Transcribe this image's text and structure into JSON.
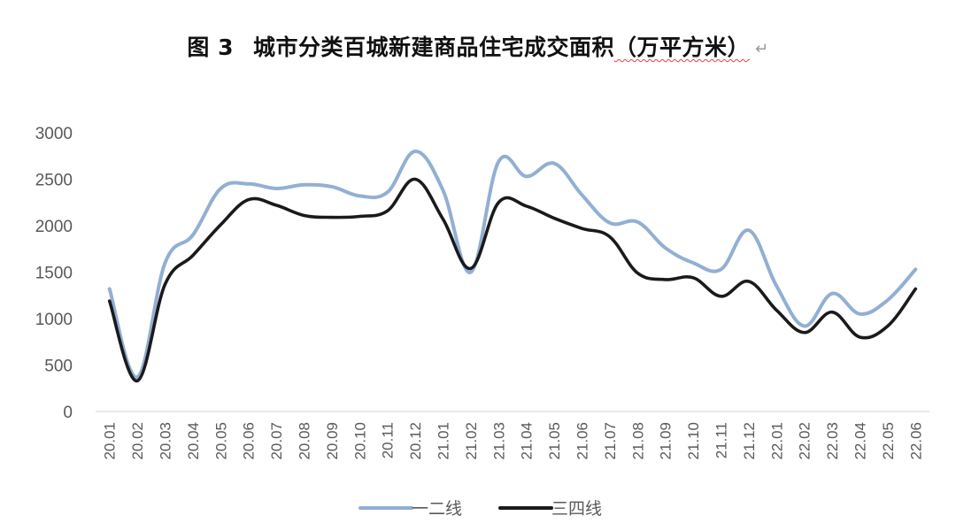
{
  "title": {
    "figure_label": "图 3",
    "main": "城市分类百城新建商品住宅成交面积",
    "unit": "（万平方米）",
    "return_mark": "↵"
  },
  "chart_data": {
    "type": "line",
    "title": "图 3　城市分类百城新建商品住宅成交面积（万平方米）",
    "xlabel": "",
    "ylabel": "",
    "ylim": [
      0,
      3000
    ],
    "yticks": [
      0,
      500,
      1000,
      1500,
      2000,
      2500,
      3000
    ],
    "grid": false,
    "legend_position": "bottom",
    "categories": [
      "20.01",
      "20.02",
      "20.03",
      "20.04",
      "20.05",
      "20.06",
      "20.07",
      "20.08",
      "20.09",
      "20.10",
      "20.11",
      "20.12",
      "21.01",
      "21.02",
      "21.03",
      "21.04",
      "21.05",
      "21.06",
      "21.07",
      "21.08",
      "21.09",
      "21.10",
      "21.11",
      "21.12",
      "22.01",
      "22.02",
      "22.03",
      "22.04",
      "22.05",
      "22.06"
    ],
    "series": [
      {
        "name": "一二线",
        "color": "#92AFD3",
        "values": [
          1320,
          370,
          1600,
          1900,
          2400,
          2450,
          2400,
          2440,
          2420,
          2320,
          2360,
          2800,
          2380,
          1500,
          2690,
          2530,
          2670,
          2330,
          2030,
          2040,
          1760,
          1600,
          1530,
          1950,
          1350,
          920,
          1270,
          1050,
          1200,
          1530
        ]
      },
      {
        "name": "三四线",
        "color": "#1A1A1A",
        "values": [
          1190,
          330,
          1370,
          1680,
          2010,
          2280,
          2220,
          2110,
          2090,
          2100,
          2160,
          2500,
          2070,
          1540,
          2250,
          2210,
          2080,
          1970,
          1880,
          1490,
          1420,
          1440,
          1240,
          1400,
          1090,
          850,
          1070,
          800,
          920,
          1320
        ]
      }
    ]
  }
}
